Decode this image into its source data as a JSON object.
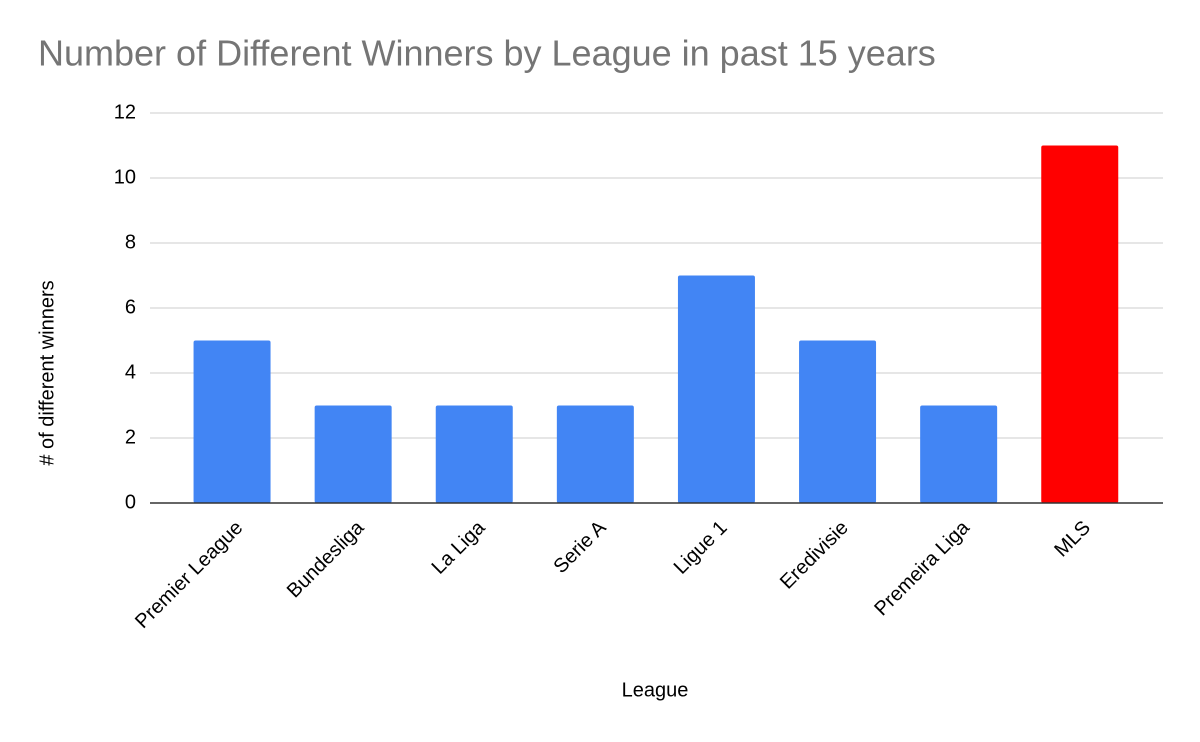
{
  "chart_data": {
    "type": "bar",
    "title": "Number of Different Winners by League in past 15 years",
    "x_label": "League",
    "y_label": "# of different winners",
    "categories": [
      "Premier League",
      "Bundesliga",
      "La Liga",
      "Serie A",
      "Ligue 1",
      "Eredivisie",
      "Premeira Liga",
      "MLS"
    ],
    "values": [
      5,
      3,
      3,
      3,
      7,
      5,
      3,
      11
    ],
    "colors": [
      "#4285f4",
      "#4285f4",
      "#4285f4",
      "#4285f4",
      "#4285f4",
      "#4285f4",
      "#4285f4",
      "#ff0000"
    ],
    "ylim": [
      0,
      12
    ],
    "yticks": [
      0,
      2,
      4,
      6,
      8,
      10,
      12
    ],
    "grid": true
  }
}
